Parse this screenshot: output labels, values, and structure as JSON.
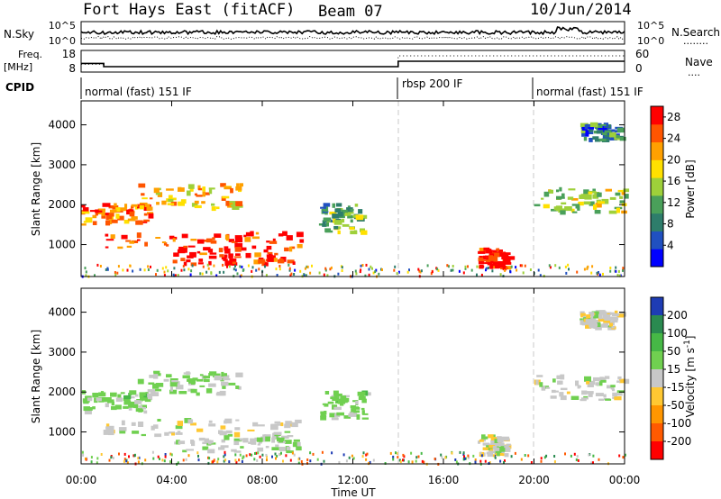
{
  "header": {
    "station": "Fort Hays East (fitACF)",
    "beam": "Beam 07",
    "date": "10/Jun/2014"
  },
  "noise_panel": {
    "left_label": "N.Sky",
    "left_ticks": [
      "10^5",
      "10^0"
    ],
    "right_ticks": [
      "10^5",
      "10^0"
    ],
    "right_label": "N.Search",
    "right_dots": "........"
  },
  "freq_panel": {
    "left_label_1": "Freq.",
    "left_label_2": "[MHz]",
    "left_ticks": [
      "18",
      "8"
    ],
    "right_ticks": [
      "60",
      "0"
    ],
    "right_label": "Nave",
    "right_dots": "....",
    "freq_segments_mhz": [
      {
        "start_hr": 0.0,
        "end_hr": 1.0,
        "value": 12.0
      },
      {
        "start_hr": 1.0,
        "end_hr": 14.0,
        "value": 10.5
      },
      {
        "start_hr": 14.0,
        "end_hr": 24.0,
        "value": 13.0
      }
    ],
    "nave_segments": [
      {
        "start_hr": 0.0,
        "end_hr": 1.0,
        "value": 22
      },
      {
        "start_hr": 1.0,
        "end_hr": 14.0,
        "value": 15
      },
      {
        "start_hr": 14.0,
        "end_hr": 24.0,
        "value": 45
      }
    ]
  },
  "cpid": {
    "label": "CPID",
    "modes": [
      {
        "label": "normal (fast) 151 IF",
        "start_hr": 0.0,
        "end_hr": 14.0
      },
      {
        "label": "rbsp 200 IF",
        "start_hr": 14.0,
        "end_hr": 20.0
      },
      {
        "label": "normal (fast) 151 IF",
        "start_hr": 20.0,
        "end_hr": 24.0
      }
    ]
  },
  "power_panel": {
    "ylabel": "Slant Range [km]",
    "y_ticks": [
      "1000",
      "2000",
      "3000",
      "4000"
    ],
    "colorbar_label": "Power [dB]",
    "colorbar_ticks": [
      "4",
      "8",
      "12",
      "16",
      "20",
      "24",
      "28"
    ],
    "colorbar_colors": [
      "#0000ff",
      "#2050c0",
      "#2e7d6b",
      "#4aa05a",
      "#9ed03a",
      "#ffe000",
      "#ffa000",
      "#ff5500",
      "#ff0000"
    ]
  },
  "velocity_panel": {
    "ylabel": "Slant Range [km]",
    "y_ticks": [
      "1000",
      "2000",
      "3000",
      "4000"
    ],
    "colorbar_label_1": "Velocity [m s",
    "colorbar_label_sup": "-1",
    "colorbar_label_2": "]",
    "colorbar_ticks": [
      "200",
      "100",
      "50",
      "15",
      "-15",
      "-50",
      "-100",
      "-200"
    ],
    "colorbar_colors": [
      "#1e3cb4",
      "#2a8a50",
      "#46b846",
      "#70d050",
      "#c8c8c8",
      "#ffc832",
      "#ff9600",
      "#ff5a00",
      "#ff0000"
    ]
  },
  "x_axis": {
    "label": "Time UT",
    "ticks": [
      "00:00",
      "04:00",
      "08:00",
      "12:00",
      "16:00",
      "20:00",
      "00:00"
    ]
  },
  "chart_data": {
    "type": "heatmap",
    "title": "Fort Hays East (fitACF) Beam 07 10/Jun/2014",
    "xlabel": "Time UT",
    "ylabel": "Slant Range [km]",
    "xlim_hours": [
      0,
      24
    ],
    "ylim_km": [
      200,
      4600
    ],
    "panels": [
      "Power [dB]",
      "Velocity [m s-1]"
    ],
    "power_range_db": [
      0,
      30
    ],
    "velocity_range_ms": [
      -200,
      200
    ],
    "mode_change_hours": [
      14,
      20
    ],
    "echo_regions": [
      {
        "start_hr": 0.0,
        "end_hr": 3.0,
        "range_km": [
          1500,
          2000
        ],
        "power_db": 24,
        "velocity_ms": 40
      },
      {
        "start_hr": 0.8,
        "end_hr": 9.8,
        "range_km": [
          900,
          1300
        ],
        "power_db": 26,
        "velocity_ms": 0
      },
      {
        "start_hr": 2.5,
        "end_hr": 7.0,
        "range_km": [
          1900,
          2500
        ],
        "power_db": 20,
        "velocity_ms": 30
      },
      {
        "start_hr": 4.0,
        "end_hr": 9.5,
        "range_km": [
          500,
          900
        ],
        "power_db": 28,
        "velocity_ms": 20
      },
      {
        "start_hr": 10.5,
        "end_hr": 12.5,
        "range_km": [
          1300,
          2000
        ],
        "power_db": 12,
        "velocity_ms": 40
      },
      {
        "start_hr": 17.5,
        "end_hr": 18.8,
        "range_km": [
          400,
          900
        ],
        "power_db": 28,
        "velocity_ms": 0
      },
      {
        "start_hr": 20.0,
        "end_hr": 24.0,
        "range_km": [
          1800,
          2400
        ],
        "power_db": 16,
        "velocity_ms": 0
      },
      {
        "start_hr": 22.0,
        "end_hr": 23.8,
        "range_km": [
          3600,
          4000
        ],
        "power_db": 8,
        "velocity_ms": 0
      }
    ]
  }
}
